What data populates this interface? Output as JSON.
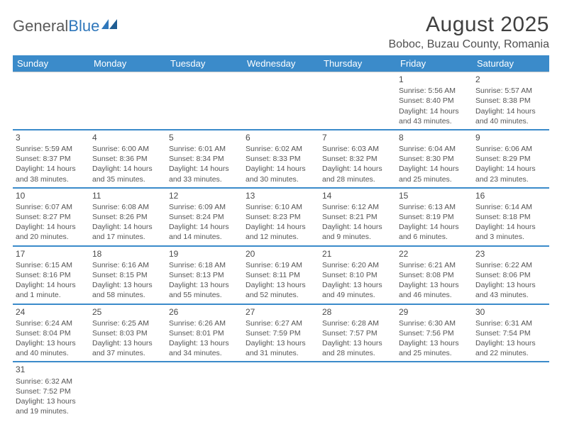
{
  "logo": {
    "text1": "General",
    "text2": "Blue"
  },
  "title": "August 2025",
  "location": "Boboc, Buzau County, Romania",
  "headerBg": "#3b8bca",
  "dayNames": [
    "Sunday",
    "Monday",
    "Tuesday",
    "Wednesday",
    "Thursday",
    "Friday",
    "Saturday"
  ],
  "weeks": [
    [
      null,
      null,
      null,
      null,
      null,
      {
        "n": "1",
        "r": "5:56 AM",
        "s": "8:40 PM",
        "d": "14 hours and 43 minutes."
      },
      {
        "n": "2",
        "r": "5:57 AM",
        "s": "8:38 PM",
        "d": "14 hours and 40 minutes."
      }
    ],
    [
      {
        "n": "3",
        "r": "5:59 AM",
        "s": "8:37 PM",
        "d": "14 hours and 38 minutes."
      },
      {
        "n": "4",
        "r": "6:00 AM",
        "s": "8:36 PM",
        "d": "14 hours and 35 minutes."
      },
      {
        "n": "5",
        "r": "6:01 AM",
        "s": "8:34 PM",
        "d": "14 hours and 33 minutes."
      },
      {
        "n": "6",
        "r": "6:02 AM",
        "s": "8:33 PM",
        "d": "14 hours and 30 minutes."
      },
      {
        "n": "7",
        "r": "6:03 AM",
        "s": "8:32 PM",
        "d": "14 hours and 28 minutes."
      },
      {
        "n": "8",
        "r": "6:04 AM",
        "s": "8:30 PM",
        "d": "14 hours and 25 minutes."
      },
      {
        "n": "9",
        "r": "6:06 AM",
        "s": "8:29 PM",
        "d": "14 hours and 23 minutes."
      }
    ],
    [
      {
        "n": "10",
        "r": "6:07 AM",
        "s": "8:27 PM",
        "d": "14 hours and 20 minutes."
      },
      {
        "n": "11",
        "r": "6:08 AM",
        "s": "8:26 PM",
        "d": "14 hours and 17 minutes."
      },
      {
        "n": "12",
        "r": "6:09 AM",
        "s": "8:24 PM",
        "d": "14 hours and 14 minutes."
      },
      {
        "n": "13",
        "r": "6:10 AM",
        "s": "8:23 PM",
        "d": "14 hours and 12 minutes."
      },
      {
        "n": "14",
        "r": "6:12 AM",
        "s": "8:21 PM",
        "d": "14 hours and 9 minutes."
      },
      {
        "n": "15",
        "r": "6:13 AM",
        "s": "8:19 PM",
        "d": "14 hours and 6 minutes."
      },
      {
        "n": "16",
        "r": "6:14 AM",
        "s": "8:18 PM",
        "d": "14 hours and 3 minutes."
      }
    ],
    [
      {
        "n": "17",
        "r": "6:15 AM",
        "s": "8:16 PM",
        "d": "14 hours and 1 minute."
      },
      {
        "n": "18",
        "r": "6:16 AM",
        "s": "8:15 PM",
        "d": "13 hours and 58 minutes."
      },
      {
        "n": "19",
        "r": "6:18 AM",
        "s": "8:13 PM",
        "d": "13 hours and 55 minutes."
      },
      {
        "n": "20",
        "r": "6:19 AM",
        "s": "8:11 PM",
        "d": "13 hours and 52 minutes."
      },
      {
        "n": "21",
        "r": "6:20 AM",
        "s": "8:10 PM",
        "d": "13 hours and 49 minutes."
      },
      {
        "n": "22",
        "r": "6:21 AM",
        "s": "8:08 PM",
        "d": "13 hours and 46 minutes."
      },
      {
        "n": "23",
        "r": "6:22 AM",
        "s": "8:06 PM",
        "d": "13 hours and 43 minutes."
      }
    ],
    [
      {
        "n": "24",
        "r": "6:24 AM",
        "s": "8:04 PM",
        "d": "13 hours and 40 minutes."
      },
      {
        "n": "25",
        "r": "6:25 AM",
        "s": "8:03 PM",
        "d": "13 hours and 37 minutes."
      },
      {
        "n": "26",
        "r": "6:26 AM",
        "s": "8:01 PM",
        "d": "13 hours and 34 minutes."
      },
      {
        "n": "27",
        "r": "6:27 AM",
        "s": "7:59 PM",
        "d": "13 hours and 31 minutes."
      },
      {
        "n": "28",
        "r": "6:28 AM",
        "s": "7:57 PM",
        "d": "13 hours and 28 minutes."
      },
      {
        "n": "29",
        "r": "6:30 AM",
        "s": "7:56 PM",
        "d": "13 hours and 25 minutes."
      },
      {
        "n": "30",
        "r": "6:31 AM",
        "s": "7:54 PM",
        "d": "13 hours and 22 minutes."
      }
    ],
    [
      {
        "n": "31",
        "r": "6:32 AM",
        "s": "7:52 PM",
        "d": "13 hours and 19 minutes."
      },
      null,
      null,
      null,
      null,
      null,
      null
    ]
  ],
  "labels": {
    "sunrise": "Sunrise: ",
    "sunset": "Sunset: ",
    "daylight": "Daylight: "
  }
}
